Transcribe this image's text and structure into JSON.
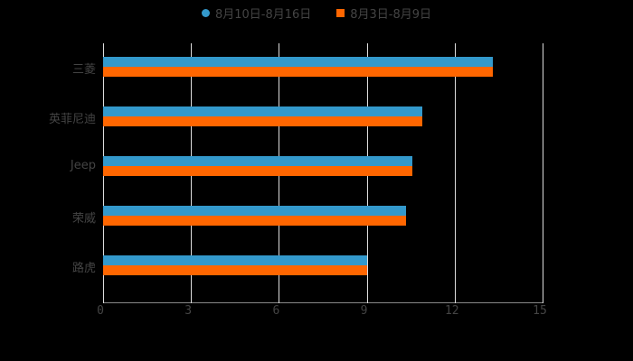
{
  "chart_data": {
    "type": "bar",
    "orientation": "horizontal",
    "title": "",
    "xlabel": "",
    "ylabel": "",
    "categories": [
      "三菱",
      "英菲尼迪",
      "Jeep",
      "荣威",
      "路虎"
    ],
    "series": [
      {
        "name": "8月10日-8月16日",
        "color": "#3399cc",
        "values": [
          13.3,
          10.9,
          10.55,
          10.35,
          9.0
        ]
      },
      {
        "name": "8月3日-8月9日",
        "color": "#ff6600",
        "values": [
          13.3,
          10.9,
          10.55,
          10.35,
          9.0
        ]
      }
    ],
    "xlim": [
      0,
      15
    ],
    "xticks": [
      "0",
      "3",
      "6",
      "9",
      "12",
      "15"
    ],
    "grid": true,
    "legend_position": "top"
  },
  "legend": {
    "items": [
      {
        "label": "8月10日-8月16日",
        "color": "#3399cc"
      },
      {
        "label": "8月3日-8月9日",
        "color": "#ff6600"
      }
    ]
  }
}
